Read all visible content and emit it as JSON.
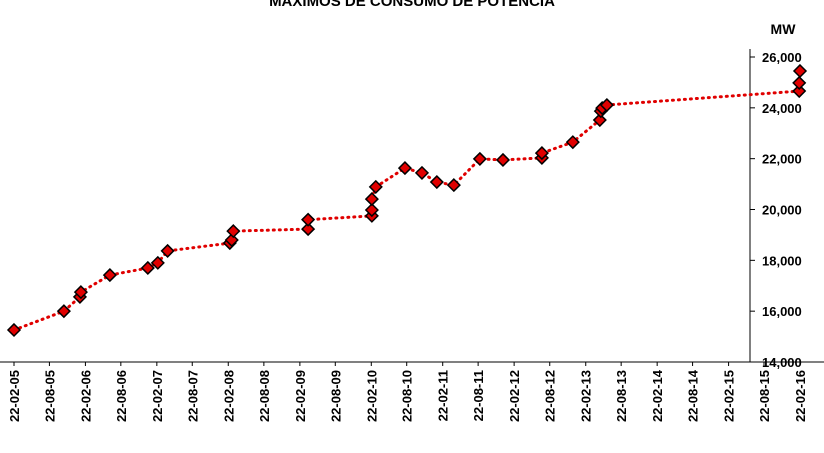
{
  "chart_data": {
    "type": "scatter",
    "title": "MÁXIMOS DE CONSUMO DE POTENCIA",
    "y_label": "MW",
    "line_style": "dotted",
    "color": "#e00000",
    "x": [
      "2005-02-22",
      "2005-11-04",
      "2006-01-25",
      "2006-01-30",
      "2006-06-27",
      "2007-01-07",
      "2007-02-27",
      "2007-04-18",
      "2008-03-01",
      "2008-03-11",
      "2008-03-19",
      "2009-04-05",
      "2009-04-05",
      "2010-02-25",
      "2010-02-25",
      "2010-02-25",
      "2010-03-17",
      "2010-08-13",
      "2010-11-08",
      "2011-01-23",
      "2011-04-20",
      "2011-08-31",
      "2011-12-27",
      "2012-07-13",
      "2012-07-13",
      "2012-12-18",
      "2013-05-05",
      "2013-05-10",
      "2013-05-17",
      "2013-06-10",
      "2016-02-18",
      "2016-02-18",
      "2016-02-22"
    ],
    "values": [
      15260,
      16000,
      16560,
      16750,
      17420,
      17700,
      17900,
      18370,
      18680,
      18800,
      19150,
      19230,
      19600,
      19750,
      19980,
      20410,
      20890,
      21630,
      21440,
      21080,
      20960,
      21990,
      21950,
      22030,
      22220,
      22650,
      23520,
      23870,
      23990,
      24110,
      24660,
      24980,
      25450
    ],
    "xlim": [
      "2005-02-22",
      "2016-02-22"
    ],
    "xticks": [
      {
        "value": "2005-02-22",
        "label": "22-02-05"
      },
      {
        "value": "2005-08-22",
        "label": "22-08-05"
      },
      {
        "value": "2006-02-22",
        "label": "22-02-06"
      },
      {
        "value": "2006-08-22",
        "label": "22-08-06"
      },
      {
        "value": "2007-02-22",
        "label": "22-02-07"
      },
      {
        "value": "2007-08-22",
        "label": "22-08-07"
      },
      {
        "value": "2008-02-22",
        "label": "22-02-08"
      },
      {
        "value": "2008-08-22",
        "label": "22-08-08"
      },
      {
        "value": "2009-02-22",
        "label": "22-02-09"
      },
      {
        "value": "2009-08-22",
        "label": "22-08-09"
      },
      {
        "value": "2010-02-22",
        "label": "22-02-10"
      },
      {
        "value": "2010-08-22",
        "label": "22-08-10"
      },
      {
        "value": "2011-02-22",
        "label": "22-02-11"
      },
      {
        "value": "2011-08-22",
        "label": "22-08-11"
      },
      {
        "value": "2012-02-22",
        "label": "22-02-12"
      },
      {
        "value": "2012-08-22",
        "label": "22-08-12"
      },
      {
        "value": "2013-02-22",
        "label": "22-02-13"
      },
      {
        "value": "2013-08-22",
        "label": "22-08-13"
      },
      {
        "value": "2014-02-22",
        "label": "22-02-14"
      },
      {
        "value": "2014-08-22",
        "label": "22-08-14"
      },
      {
        "value": "2015-02-22",
        "label": "22-02-15"
      },
      {
        "value": "2015-08-22",
        "label": "22-08-15"
      },
      {
        "value": "2016-02-22",
        "label": "22-02-16"
      }
    ],
    "ylim": [
      14000,
      26000
    ],
    "yticks": [
      {
        "value": 14000,
        "label": "14,000"
      },
      {
        "value": 16000,
        "label": "16,000"
      },
      {
        "value": 18000,
        "label": "18,000"
      },
      {
        "value": 20000,
        "label": "20,000"
      },
      {
        "value": 22000,
        "label": "22,000"
      },
      {
        "value": 24000,
        "label": "24,000"
      },
      {
        "value": 26000,
        "label": "26,000"
      }
    ],
    "y_axis_side": "right"
  }
}
